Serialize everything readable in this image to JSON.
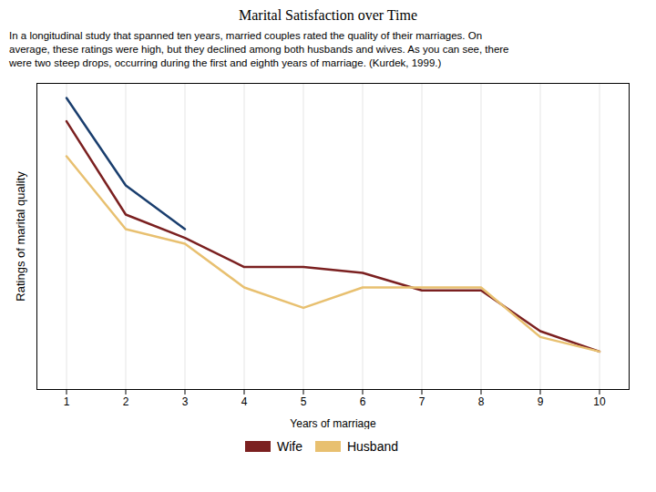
{
  "chart_data": {
    "type": "line",
    "title": "Marital Satisfaction over Time",
    "subtitle": [
      "In a longitudinal study that spanned ten years, married couples rated the quality of their marriages. On",
      "average, these ratings were high, but they declined among both husbands and wives. As you can see, there",
      "were two steep drops, occurring during the first and eighth years of marriage. (Kurdek, 1999.)"
    ],
    "xlabel": "Years of marriage",
    "ylabel": "Ratings of marital quality",
    "x": [
      1,
      2,
      3,
      4,
      5,
      6,
      7,
      8,
      9,
      10
    ],
    "series": [
      {
        "name": "Wife",
        "color": "#7B2020",
        "values": [
          0.92,
          0.6,
          0.52,
          0.42,
          0.42,
          0.4,
          0.34,
          0.34,
          0.2,
          0.13
        ]
      },
      {
        "name": "Husband",
        "color": "#E8C070",
        "values": [
          0.8,
          0.55,
          0.5,
          0.35,
          0.28,
          0.35,
          0.35,
          0.35,
          0.18,
          0.13
        ]
      },
      {
        "color": "#1A3E6E",
        "values": [
          1.0,
          0.7,
          0.55,
          null,
          null,
          null,
          null,
          null,
          null,
          null
        ]
      }
    ],
    "xlim": [
      0.5,
      10.5
    ],
    "xticks": [
      1,
      2,
      3,
      4,
      5,
      6,
      7,
      8,
      9,
      10
    ],
    "ylim": [
      0,
      1.05
    ],
    "yticks": [],
    "tick_labels": "x",
    "grid": true,
    "legend": "bottom"
  }
}
